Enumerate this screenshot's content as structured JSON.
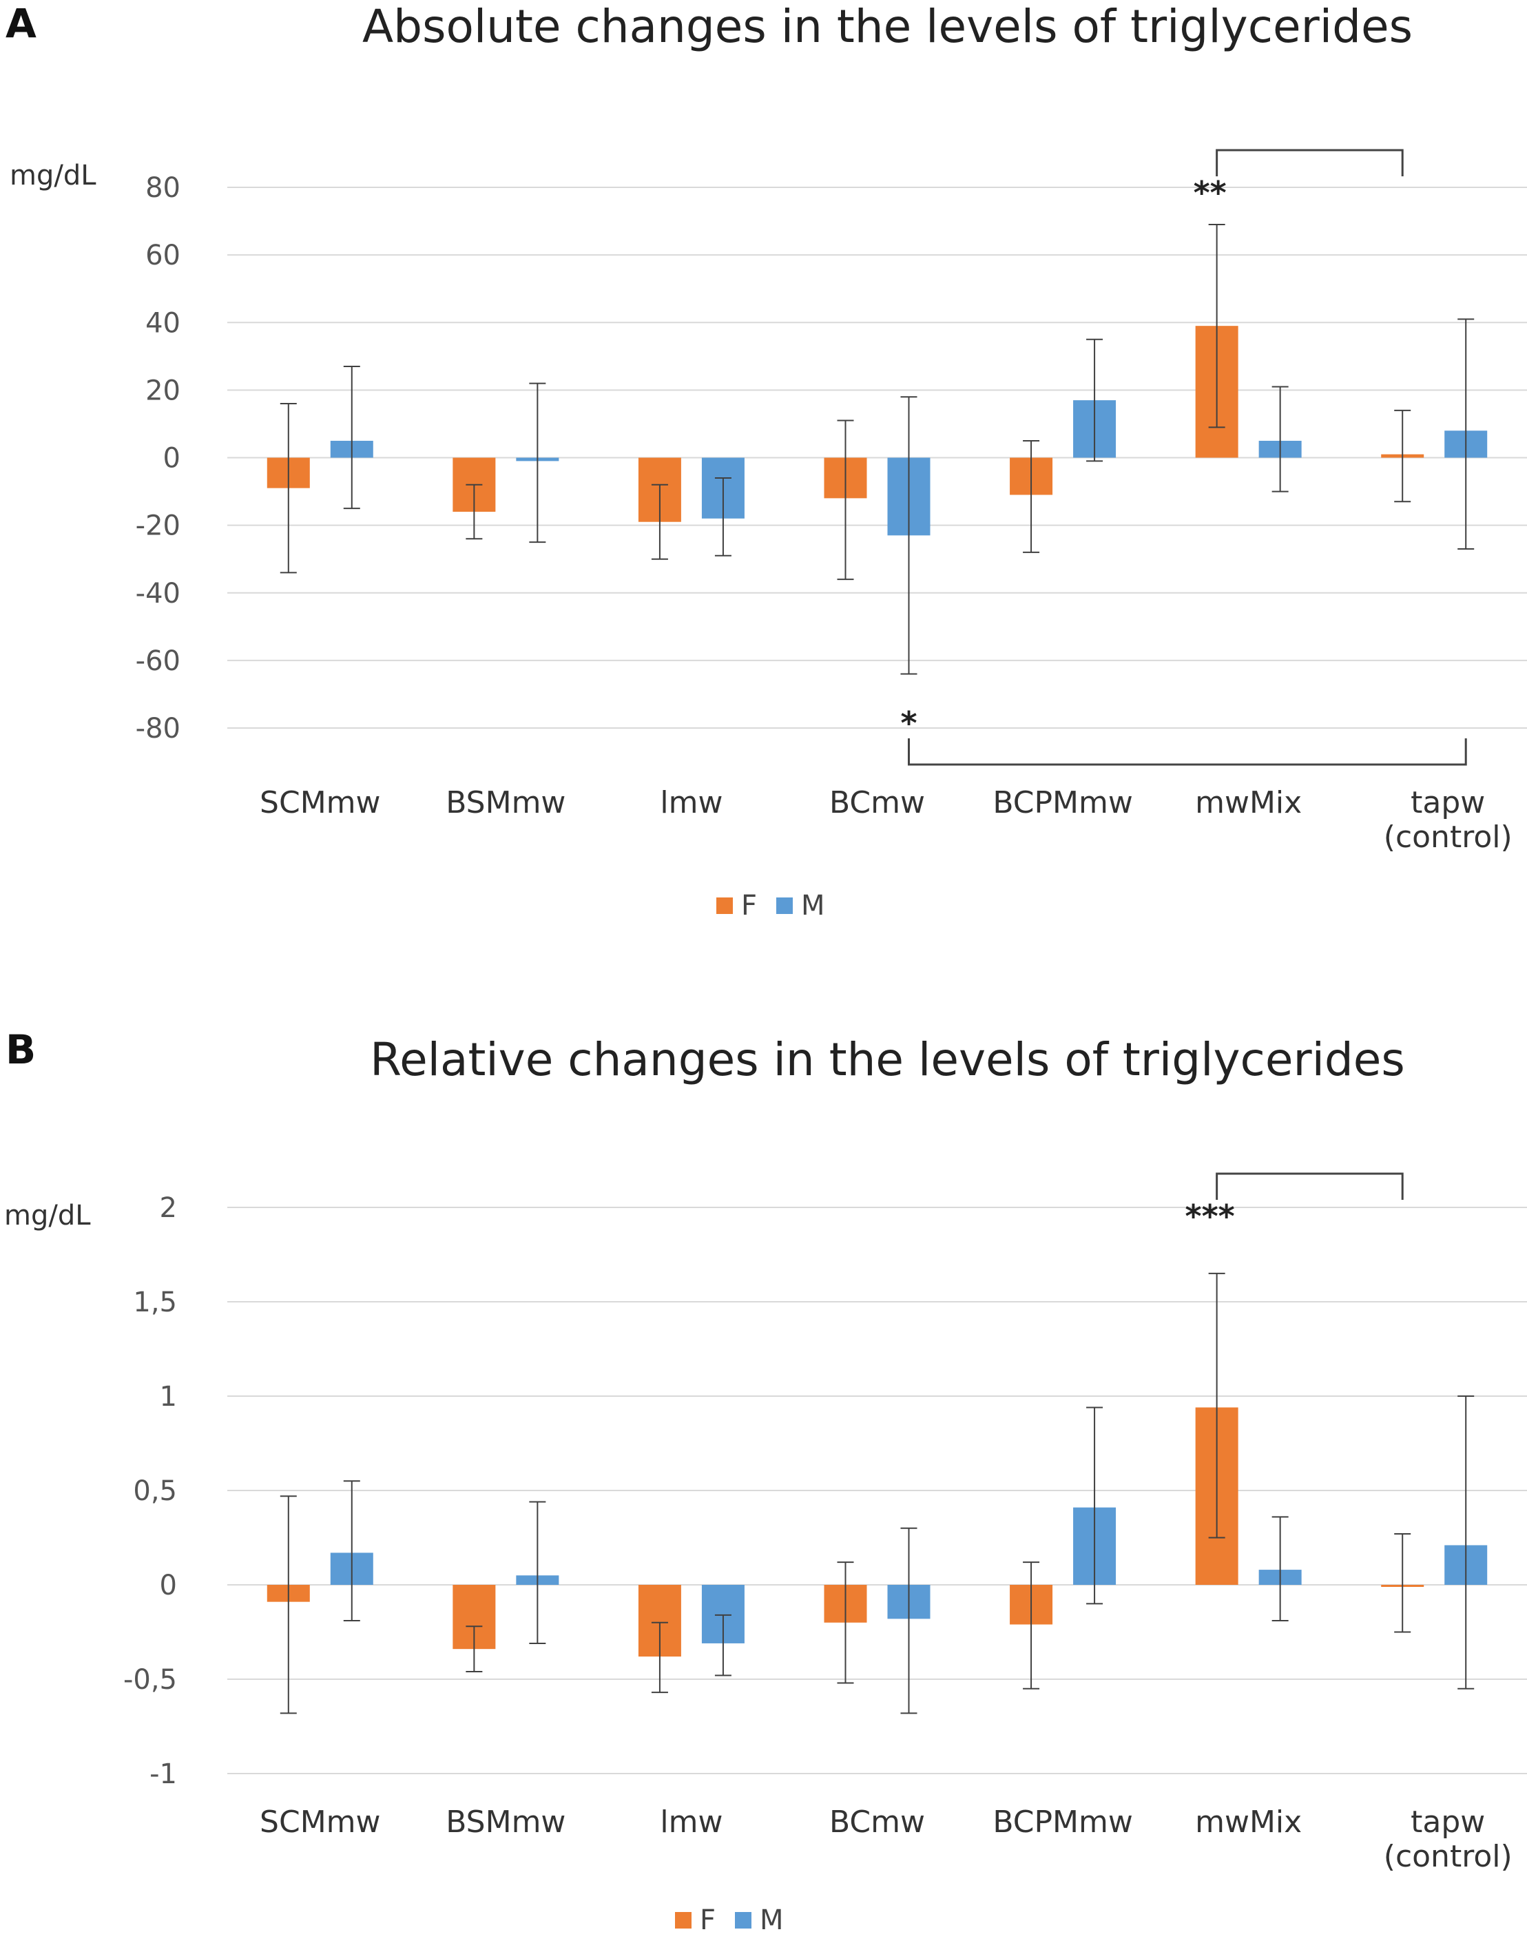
{
  "colors": {
    "F": "#ED7D31",
    "M": "#5B9BD5",
    "grid": "#D9D9D9",
    "axis_text": "#555555",
    "error": "#404040"
  },
  "chart_data": [
    {
      "panel_label": "A",
      "type": "bar",
      "title": "Absolute changes in the levels of triglycerides",
      "ylabel": "mg/dL",
      "ylim": [
        -80,
        80
      ],
      "yticks": [
        80,
        60,
        40,
        20,
        0,
        -20,
        -40,
        -60,
        -80
      ],
      "ytick_labels": [
        "80",
        "60",
        "40",
        "20",
        "0",
        "-20",
        "-40",
        "-60",
        "-80"
      ],
      "categories": [
        [
          "SCMmw"
        ],
        [
          "BSMmw"
        ],
        [
          "lmw"
        ],
        [
          "BCmw"
        ],
        [
          "BCPMmw"
        ],
        [
          "mwMix"
        ],
        [
          "tapw",
          "(control)"
        ]
      ],
      "series": [
        {
          "name": "F",
          "values": [
            -9,
            -16,
            -19,
            -12,
            -11,
            39,
            1
          ],
          "err_low": [
            -34,
            -24,
            -30,
            -36,
            -28,
            9,
            -13
          ],
          "err_high": [
            16,
            -8,
            -8,
            11,
            5,
            69,
            14
          ]
        },
        {
          "name": "M",
          "values": [
            5,
            -1,
            -18,
            -23,
            17,
            5,
            8
          ],
          "err_low": [
            -15,
            -25,
            -29,
            -64,
            -1,
            -10,
            -27
          ],
          "err_high": [
            27,
            22,
            -6,
            18,
            35,
            21,
            41
          ]
        }
      ],
      "annotations": [
        {
          "text": "**",
          "from_category": 5,
          "to_category": 6,
          "placement": "top",
          "series": "F"
        },
        {
          "text": "*",
          "from_category": 3,
          "to_category": 6,
          "placement": "bottom",
          "series": "M"
        }
      ],
      "legend": [
        "F",
        "M"
      ],
      "legend_placement": "bottom-center"
    },
    {
      "panel_label": "B",
      "type": "bar",
      "title": "Relative changes in the levels of triglycerides",
      "ylabel": "mg/dL",
      "ylim": [
        -1,
        2
      ],
      "yticks": [
        2,
        1.5,
        1,
        0.5,
        0,
        -0.5,
        -1
      ],
      "ytick_labels": [
        "2",
        "1,5",
        "1",
        "0,5",
        "0",
        "-0,5",
        "-1"
      ],
      "categories": [
        [
          "SCMmw"
        ],
        [
          "BSMmw"
        ],
        [
          "lmw"
        ],
        [
          "BCmw"
        ],
        [
          "BCPMmw"
        ],
        [
          "mwMix"
        ],
        [
          "tapw",
          "(control)"
        ]
      ],
      "series": [
        {
          "name": "F",
          "values": [
            -0.09,
            -0.34,
            -0.38,
            -0.2,
            -0.21,
            0.94,
            0.0
          ],
          "err_low": [
            -0.68,
            -0.46,
            -0.57,
            -0.52,
            -0.55,
            0.25,
            -0.25
          ],
          "err_high": [
            0.47,
            -0.22,
            -0.2,
            0.12,
            0.12,
            1.65,
            0.27
          ]
        },
        {
          "name": "M",
          "values": [
            0.17,
            0.05,
            -0.31,
            -0.18,
            0.41,
            0.08,
            0.21
          ],
          "err_low": [
            -0.19,
            -0.31,
            -0.48,
            -0.68,
            -0.1,
            -0.19,
            -0.55
          ],
          "err_high": [
            0.55,
            0.44,
            -0.16,
            0.3,
            0.94,
            0.36,
            1.0
          ]
        }
      ],
      "annotations": [
        {
          "text": "***",
          "from_category": 5,
          "to_category": 6,
          "placement": "top",
          "series": "F"
        }
      ],
      "legend": [
        "F",
        "M"
      ],
      "legend_placement": "bottom-center"
    }
  ]
}
